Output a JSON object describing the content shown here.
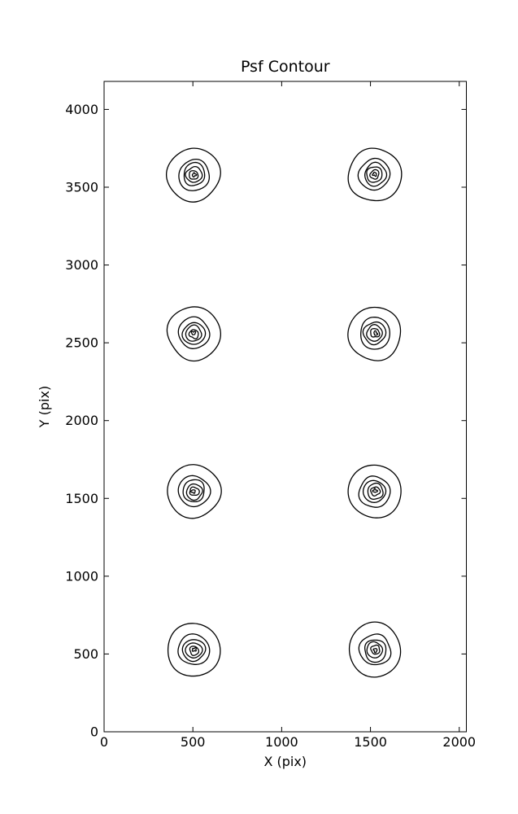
{
  "chart_data": {
    "type": "contour",
    "title": "Psf Contour",
    "xlabel": "X (pix)",
    "ylabel": "Y (pix)",
    "xlim": [
      0,
      2040
    ],
    "ylim": [
      0,
      4180
    ],
    "xticks": [
      0,
      500,
      1000,
      1500,
      2000
    ],
    "yticks": [
      0,
      500,
      1000,
      1500,
      2000,
      2500,
      3000,
      3500,
      4000
    ],
    "grid": false,
    "legend": false,
    "line_color": "#000000",
    "background_color": "#ffffff",
    "n_contour_levels": 6,
    "psf_sources": [
      {
        "x": 505,
        "y": 525
      },
      {
        "x": 1525,
        "y": 525
      },
      {
        "x": 505,
        "y": 1545
      },
      {
        "x": 1525,
        "y": 1545
      },
      {
        "x": 505,
        "y": 2560
      },
      {
        "x": 1525,
        "y": 2560
      },
      {
        "x": 505,
        "y": 3580
      },
      {
        "x": 1525,
        "y": 3580
      }
    ],
    "contour_radii_xpix": [
      149,
      87,
      62,
      44,
      25,
      10
    ]
  }
}
